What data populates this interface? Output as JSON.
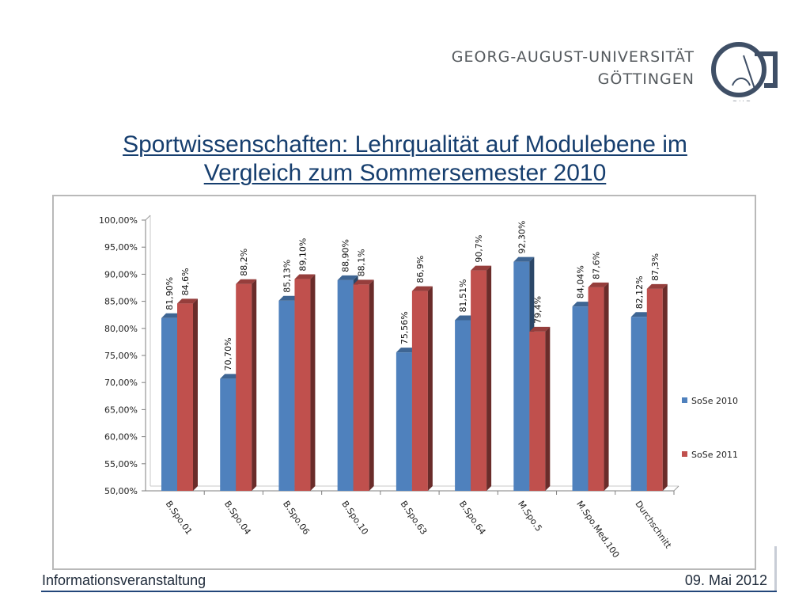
{
  "header": {
    "university_line1": "GEORG-AUGUST-UNIVERSITÄT",
    "university_line2": "GÖTTINGEN"
  },
  "slide": {
    "title_line1": "Sportwissenschaften: Lehrqualität auf Modulebene im",
    "title_line2": "Vergleich zum Sommersemester 2010"
  },
  "footer": {
    "left_text": "Informationsveranstaltung",
    "right_text": "09. Mai 2012"
  },
  "chart_data": {
    "type": "bar",
    "title": "",
    "xlabel": "",
    "ylabel": "",
    "ylim": [
      50,
      100
    ],
    "ytick_step": 5,
    "ytick_labels": [
      "50,00%",
      "55,00%",
      "60,00%",
      "65,00%",
      "70,00%",
      "75,00%",
      "80,00%",
      "85,00%",
      "90,00%",
      "95,00%",
      "100,00%"
    ],
    "categories": [
      "B.Spo.01",
      "B.Spo.04",
      "B.Spo.06",
      "B.Spo.10",
      "B.Spo.63",
      "B.Spo.64",
      "M.Spo.5",
      "M.Spo.Med.100",
      "Durchschnitt"
    ],
    "series": [
      {
        "name": "SoSe 2010",
        "color": "#4f81bd",
        "values": [
          81.9,
          70.7,
          85.13,
          88.9,
          75.56,
          81.51,
          92.3,
          84.04,
          82.12
        ],
        "labels": [
          "81,90%",
          "70,70%",
          "85,13%",
          "88,90%",
          "75,56%",
          "81,51%",
          "92,30%",
          "84,04%",
          "82,12%"
        ]
      },
      {
        "name": "SoSe 2011",
        "color": "#c0504d",
        "values": [
          84.6,
          88.2,
          89.1,
          88.1,
          86.9,
          90.7,
          79.4,
          87.6,
          87.3
        ],
        "labels": [
          "84,6%",
          "88,2%",
          "89,10%",
          "88,1%",
          "86,9%",
          "90,7%",
          "79,4%",
          "87,6%",
          "87,3%"
        ]
      }
    ],
    "legend_position": "right",
    "grid": false,
    "style": "3d-columns"
  }
}
